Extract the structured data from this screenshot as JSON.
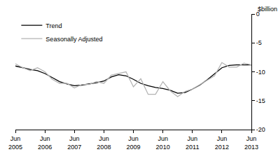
{
  "chart_data": {
    "type": "line",
    "ylabel": "$billion",
    "categories": [
      "Jun 2005",
      null,
      null,
      null,
      "Jun 2006",
      null,
      null,
      null,
      "Jun 2007",
      null,
      null,
      null,
      "Jun 2008",
      null,
      null,
      null,
      "Jun 2009",
      null,
      null,
      null,
      "Jun 2010",
      null,
      null,
      null,
      "Jun 2011",
      null,
      null,
      null,
      "Jun 2012",
      null,
      null,
      null,
      "Jun 2013"
    ],
    "series": [
      {
        "name": "Trend",
        "color": "#000000",
        "values": [
          -9.0,
          -9.3,
          -9.6,
          -9.8,
          -10.3,
          -11.0,
          -11.7,
          -12.1,
          -12.4,
          -12.3,
          -12.1,
          -11.9,
          -11.6,
          -10.9,
          -10.5,
          -10.7,
          -11.3,
          -12.0,
          -12.4,
          -12.7,
          -12.9,
          -13.2,
          -13.7,
          -13.6,
          -13.0,
          -12.3,
          -11.4,
          -10.3,
          -9.3,
          -8.9,
          -8.8,
          -8.8,
          -8.8
        ]
      },
      {
        "name": "Seasonally Adjusted",
        "color": "#b3b3b3",
        "values": [
          -8.6,
          -9.3,
          -9.8,
          -9.3,
          -10.0,
          -11.3,
          -12.0,
          -12.0,
          -12.8,
          -12.2,
          -12.2,
          -11.7,
          -12.0,
          -10.6,
          -10.3,
          -10.0,
          -12.6,
          -11.2,
          -13.9,
          -13.9,
          -11.7,
          -13.3,
          -14.3,
          -13.4,
          -13.0,
          -12.2,
          -11.5,
          -10.7,
          -8.4,
          -9.2,
          -9.2,
          -8.5,
          -8.8
        ]
      }
    ],
    "ylim": [
      -20,
      0
    ],
    "yticks": [
      -20,
      -15,
      -10,
      -5,
      0
    ],
    "grid": false,
    "legend": "top left"
  }
}
